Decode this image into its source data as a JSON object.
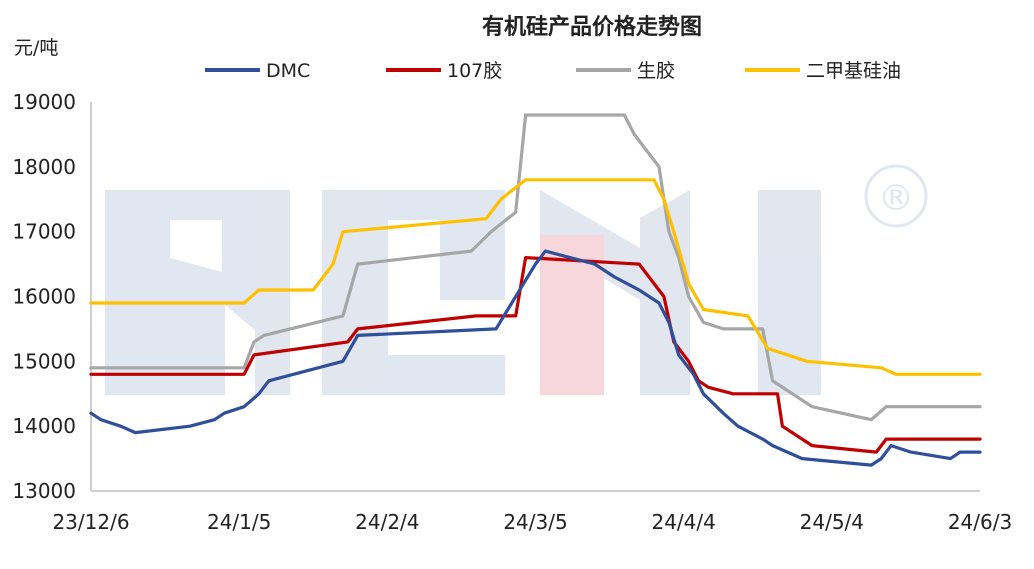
{
  "chart_data": {
    "type": "line",
    "title": "有机硅产品价格走势图",
    "ylabel": "元/吨",
    "xlabel": "",
    "ylim": [
      13000,
      19000
    ],
    "yticks": [
      13000,
      14000,
      15000,
      16000,
      17000,
      18000,
      19000
    ],
    "xticks": [
      "23/12/6",
      "24/1/5",
      "24/2/4",
      "24/3/5",
      "24/4/4",
      "24/5/4",
      "24/6/3"
    ],
    "x_start": "2023-12-06",
    "x_end": "2024-06-03",
    "legend_position": "top",
    "grid": false,
    "series": [
      {
        "name": "DMC",
        "color": "#2F4F9A",
        "points": [
          [
            "2023-12-06",
            14200
          ],
          [
            "2023-12-08",
            14100
          ],
          [
            "2023-12-12",
            14000
          ],
          [
            "2023-12-15",
            13900
          ],
          [
            "2023-12-26",
            14000
          ],
          [
            "2023-12-31",
            14100
          ],
          [
            "2024-01-02",
            14200
          ],
          [
            "2024-01-06",
            14300
          ],
          [
            "2024-01-09",
            14500
          ],
          [
            "2024-01-11",
            14700
          ],
          [
            "2024-01-26",
            15000
          ],
          [
            "2024-01-29",
            15400
          ],
          [
            "2024-02-26",
            15500
          ],
          [
            "2024-03-05",
            16500
          ],
          [
            "2024-03-07",
            16700
          ],
          [
            "2024-03-17",
            16500
          ],
          [
            "2024-03-21",
            16300
          ],
          [
            "2024-03-26",
            16100
          ],
          [
            "2024-03-30",
            15900
          ],
          [
            "2024-04-01",
            15600
          ],
          [
            "2024-04-03",
            15100
          ],
          [
            "2024-04-06",
            14800
          ],
          [
            "2024-04-08",
            14500
          ],
          [
            "2024-04-12",
            14200
          ],
          [
            "2024-04-15",
            14000
          ],
          [
            "2024-04-20",
            13800
          ],
          [
            "2024-04-22",
            13700
          ],
          [
            "2024-04-25",
            13600
          ],
          [
            "2024-04-28",
            13500
          ],
          [
            "2024-05-12",
            13400
          ],
          [
            "2024-05-14",
            13500
          ],
          [
            "2024-05-16",
            13700
          ],
          [
            "2024-05-20",
            13600
          ],
          [
            "2024-05-28",
            13500
          ],
          [
            "2024-05-30",
            13600
          ],
          [
            "2024-06-03",
            13600
          ]
        ]
      },
      {
        "name": "107胶",
        "color": "#C00000",
        "points": [
          [
            "2023-12-06",
            14800
          ],
          [
            "2024-01-06",
            14800
          ],
          [
            "2024-01-08",
            15100
          ],
          [
            "2024-01-27",
            15300
          ],
          [
            "2024-01-29",
            15500
          ],
          [
            "2024-02-22",
            15700
          ],
          [
            "2024-03-01",
            15700
          ],
          [
            "2024-03-03",
            16600
          ],
          [
            "2024-03-26",
            16500
          ],
          [
            "2024-03-31",
            16000
          ],
          [
            "2024-04-02",
            15300
          ],
          [
            "2024-04-05",
            15000
          ],
          [
            "2024-04-07",
            14700
          ],
          [
            "2024-04-09",
            14600
          ],
          [
            "2024-04-14",
            14500
          ],
          [
            "2024-04-23",
            14500
          ],
          [
            "2024-04-24",
            14000
          ],
          [
            "2024-04-30",
            13700
          ],
          [
            "2024-05-13",
            13600
          ],
          [
            "2024-05-15",
            13800
          ],
          [
            "2024-06-03",
            13800
          ]
        ]
      },
      {
        "name": "生胶",
        "color": "#A6A6A6",
        "points": [
          [
            "2023-12-06",
            14900
          ],
          [
            "2024-01-06",
            14900
          ],
          [
            "2024-01-08",
            15300
          ],
          [
            "2024-01-10",
            15400
          ],
          [
            "2024-01-26",
            15700
          ],
          [
            "2024-01-29",
            16500
          ],
          [
            "2024-02-21",
            16700
          ],
          [
            "2024-02-25",
            17000
          ],
          [
            "2024-03-01",
            17300
          ],
          [
            "2024-03-03",
            18800
          ],
          [
            "2024-03-23",
            18800
          ],
          [
            "2024-03-25",
            18500
          ],
          [
            "2024-03-27",
            18300
          ],
          [
            "2024-03-30",
            18000
          ],
          [
            "2024-04-01",
            17000
          ],
          [
            "2024-04-03",
            16600
          ],
          [
            "2024-04-05",
            16000
          ],
          [
            "2024-04-08",
            15600
          ],
          [
            "2024-04-12",
            15500
          ],
          [
            "2024-04-20",
            15500
          ],
          [
            "2024-04-22",
            14700
          ],
          [
            "2024-04-30",
            14300
          ],
          [
            "2024-05-12",
            14100
          ],
          [
            "2024-05-15",
            14300
          ],
          [
            "2024-06-03",
            14300
          ]
        ]
      },
      {
        "name": "二甲基硅油",
        "color": "#FFC000",
        "points": [
          [
            "2023-12-06",
            15900
          ],
          [
            "2024-01-06",
            15900
          ],
          [
            "2024-01-09",
            16100
          ],
          [
            "2024-01-20",
            16100
          ],
          [
            "2024-01-24",
            16500
          ],
          [
            "2024-01-26",
            17000
          ],
          [
            "2024-02-24",
            17200
          ],
          [
            "2024-02-27",
            17500
          ],
          [
            "2024-03-03",
            17800
          ],
          [
            "2024-03-29",
            17800
          ],
          [
            "2024-03-31",
            17500
          ],
          [
            "2024-04-02",
            17000
          ],
          [
            "2024-04-05",
            16200
          ],
          [
            "2024-04-08",
            15800
          ],
          [
            "2024-04-17",
            15700
          ],
          [
            "2024-04-21",
            15200
          ],
          [
            "2024-04-29",
            15000
          ],
          [
            "2024-05-14",
            14900
          ],
          [
            "2024-05-17",
            14800
          ],
          [
            "2024-06-03",
            14800
          ]
        ]
      }
    ]
  },
  "watermark": {
    "registered_mark": "®"
  }
}
